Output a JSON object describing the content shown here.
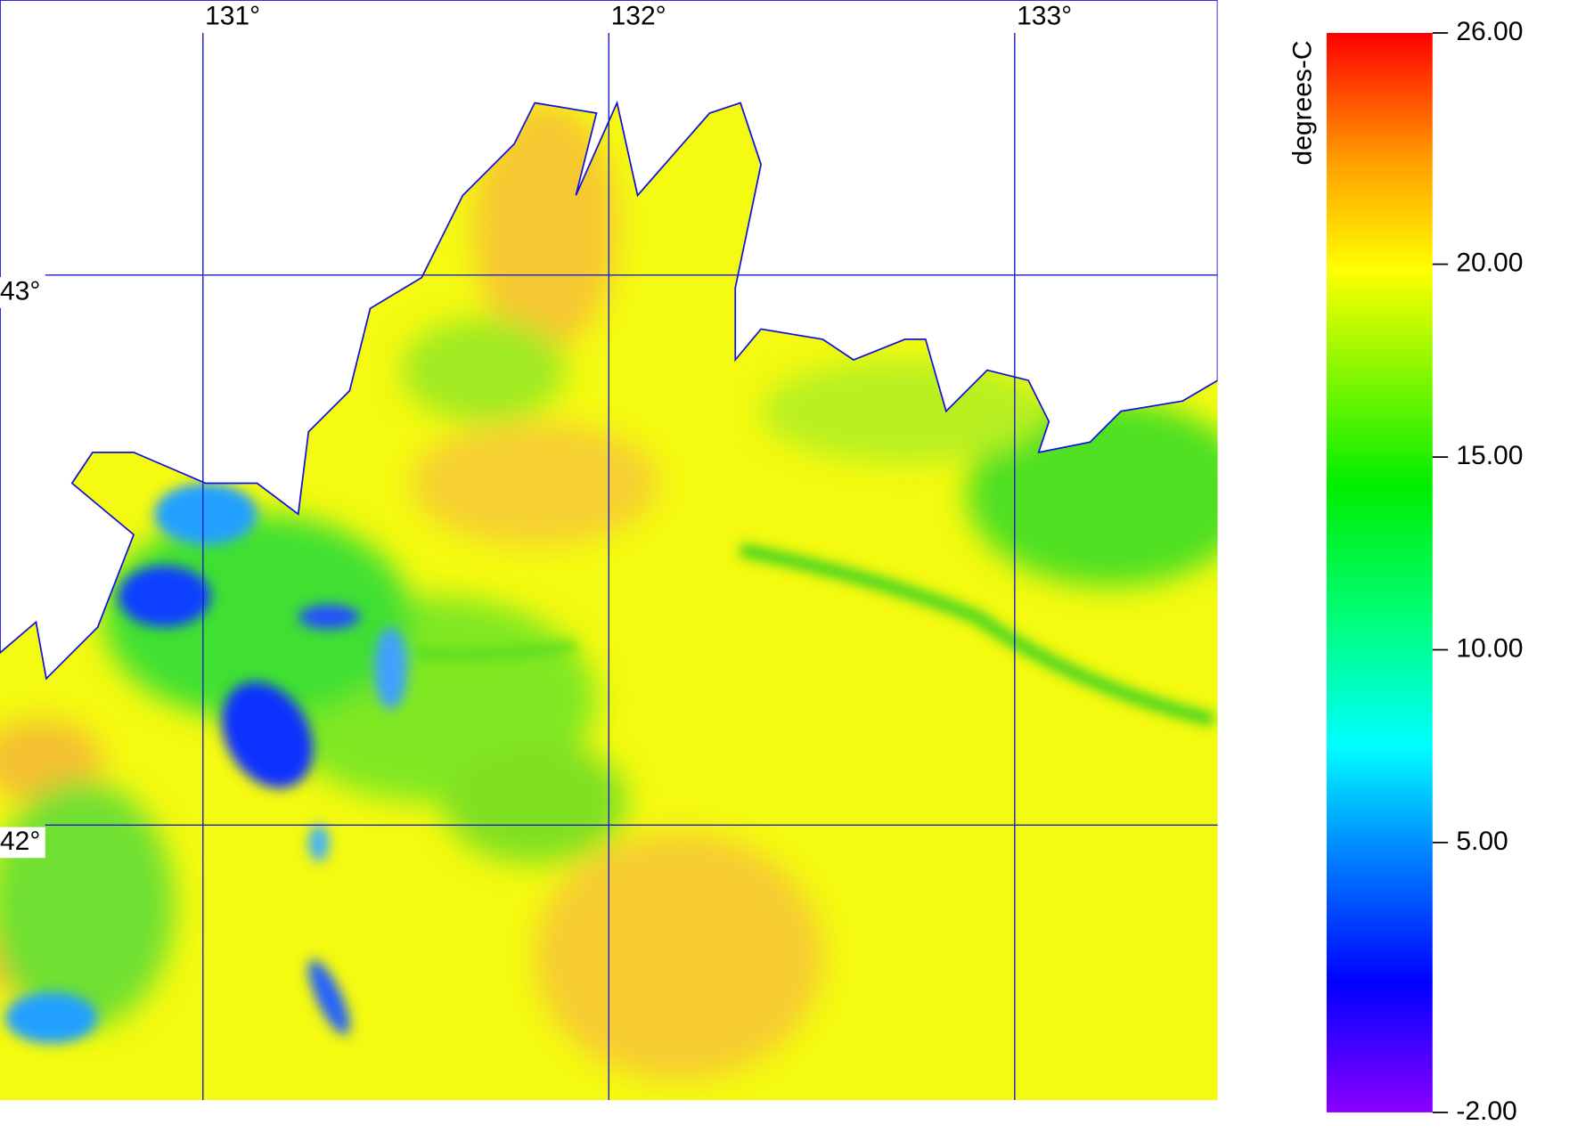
{
  "map": {
    "lon_range": [
      130.5,
      133.5
    ],
    "lat_range": [
      41.5,
      43.5
    ],
    "lon_lines": [
      {
        "value": 131,
        "label": "131°"
      },
      {
        "value": 132,
        "label": "132°"
      },
      {
        "value": 133,
        "label": "133°"
      }
    ],
    "lat_lines": [
      {
        "value": 43,
        "label": "43°"
      },
      {
        "value": 42,
        "label": "42°"
      }
    ]
  },
  "colorbar": {
    "label": "degrees-C",
    "range": [
      -2,
      26
    ],
    "ticks": [
      {
        "value": 26,
        "label": "26.00"
      },
      {
        "value": 20,
        "label": "20.00"
      },
      {
        "value": 15,
        "label": "15.00"
      },
      {
        "value": 10,
        "label": "10.00"
      },
      {
        "value": 5,
        "label": "5.00"
      },
      {
        "value": -2,
        "label": "-2.00"
      }
    ]
  }
}
